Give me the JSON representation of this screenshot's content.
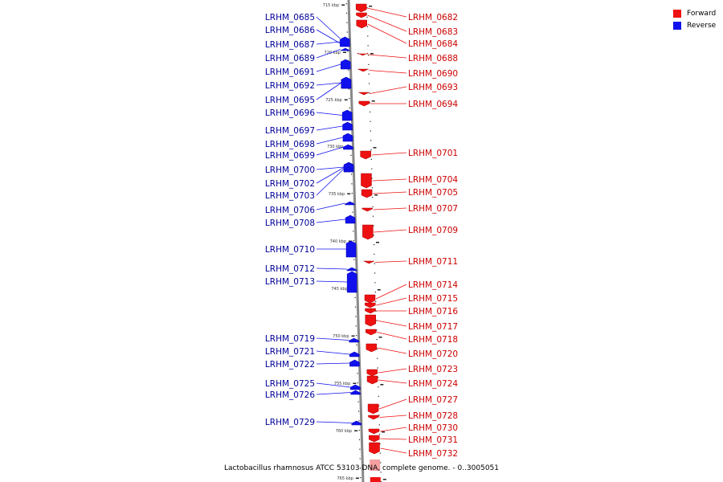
{
  "legend": [
    {
      "label": "Forward",
      "color": "#ee1111"
    },
    {
      "label": "Reverse",
      "color": "#1111ee"
    }
  ],
  "caption": "Lactobacillus rhamnosus ATCC 53103 DNA, complete genome. - 0..3005051",
  "colors": {
    "forward": "#ee1111",
    "reverse": "#1111ee",
    "forward_label": "#cc0000",
    "reverse_label": "#000099",
    "axis": "#888888"
  },
  "ticks": [
    "715 kbp",
    "720 kbp",
    "725 kbp",
    "730 kbp",
    "735 kbp",
    "740 kbp",
    "745 kbp",
    "750 kbp",
    "755 kbp",
    "760 kbp",
    "765 kbp"
  ],
  "reverse_genes": [
    "LRHM_0685",
    "LRHM_0686",
    "LRHM_0687",
    "LRHM_0689",
    "LRHM_0691",
    "LRHM_0692",
    "LRHM_0695",
    "LRHM_0696",
    "LRHM_0697",
    "LRHM_0698",
    "LRHM_0699",
    "LRHM_0700",
    "LRHM_0702",
    "LRHM_0703",
    "LRHM_0706",
    "LRHM_0708",
    "LRHM_0710",
    "LRHM_0712",
    "LRHM_0713",
    "LRHM_0719",
    "LRHM_0721",
    "LRHM_0722",
    "LRHM_0725",
    "LRHM_0726",
    "LRHM_0729"
  ],
  "forward_genes": [
    "LRHM_0682",
    "LRHM_0683",
    "LRHM_0684",
    "LRHM_0688",
    "LRHM_0690",
    "LRHM_0693",
    "LRHM_0694",
    "LRHM_0701",
    "LRHM_0704",
    "LRHM_0705",
    "LRHM_0707",
    "LRHM_0709",
    "LRHM_0711",
    "LRHM_0714",
    "LRHM_0715",
    "LRHM_0716",
    "LRHM_0717",
    "LRHM_0718",
    "LRHM_0720",
    "LRHM_0723",
    "LRHM_0724",
    "LRHM_0727",
    "LRHM_0728",
    "LRHM_0730",
    "LRHM_0731",
    "LRHM_0732"
  ]
}
